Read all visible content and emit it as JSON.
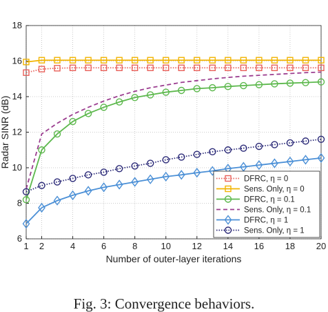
{
  "chart_data": {
    "type": "line",
    "x_label": "Number of outer-layer iterations",
    "y_label": "Radar SINR (dB)",
    "caption": "Fig. 3: Convergence behaviors.",
    "x": [
      1,
      2,
      3,
      4,
      5,
      6,
      7,
      8,
      9,
      10,
      11,
      12,
      13,
      14,
      15,
      16,
      17,
      18,
      19,
      20
    ],
    "xlim": [
      1,
      20
    ],
    "xticks": [
      1,
      2,
      4,
      6,
      8,
      10,
      12,
      14,
      16,
      18,
      20
    ],
    "ylim": [
      6,
      18
    ],
    "yticks": [
      6,
      8,
      10,
      12,
      14,
      16,
      18
    ],
    "grid": true,
    "legend": "lower right",
    "series": [
      {
        "name": "DFRC, η = 0",
        "color": "#e8605a",
        "dash": "dotted",
        "marker": "square",
        "values": [
          15.35,
          15.55,
          15.6,
          15.62,
          15.62,
          15.62,
          15.62,
          15.62,
          15.62,
          15.62,
          15.62,
          15.62,
          15.62,
          15.62,
          15.62,
          15.62,
          15.62,
          15.62,
          15.62,
          15.62
        ]
      },
      {
        "name": "Sens. Only, η = 0",
        "color": "#f2b400",
        "dash": "solid",
        "marker": "square",
        "values": [
          15.95,
          16.05,
          16.05,
          16.05,
          16.05,
          16.05,
          16.05,
          16.05,
          16.05,
          16.05,
          16.05,
          16.05,
          16.05,
          16.05,
          16.05,
          16.05,
          16.05,
          16.05,
          16.05,
          16.05
        ]
      },
      {
        "name": "DFRC, η = 0.1",
        "color": "#5cb84c",
        "dash": "solid",
        "marker": "circle",
        "values": [
          8.2,
          11.0,
          11.9,
          12.6,
          13.05,
          13.4,
          13.7,
          13.95,
          14.1,
          14.25,
          14.35,
          14.45,
          14.5,
          14.57,
          14.62,
          14.67,
          14.72,
          14.76,
          14.79,
          14.83
        ]
      },
      {
        "name": "Sens. Only, η = 0.1",
        "color": "#9b3d8f",
        "dash": "dashed",
        "marker": "none",
        "values": [
          8.8,
          11.9,
          12.5,
          13.0,
          13.4,
          13.75,
          14.05,
          14.3,
          14.5,
          14.65,
          14.8,
          14.9,
          15.0,
          15.08,
          15.15,
          15.2,
          15.25,
          15.3,
          15.35,
          15.38
        ]
      },
      {
        "name": "DFRC, η = 1",
        "color": "#4a8fd6",
        "dash": "solid",
        "marker": "diamond",
        "values": [
          6.85,
          7.75,
          8.15,
          8.45,
          8.7,
          8.9,
          9.05,
          9.2,
          9.35,
          9.5,
          9.6,
          9.72,
          9.82,
          9.95,
          10.05,
          10.15,
          10.25,
          10.35,
          10.45,
          10.55
        ]
      },
      {
        "name": "Sens. Only, η = 1",
        "color": "#2b2a78",
        "dash": "dotted",
        "marker": "circle",
        "values": [
          8.65,
          9.0,
          9.2,
          9.4,
          9.6,
          9.75,
          9.95,
          10.1,
          10.25,
          10.45,
          10.6,
          10.75,
          10.9,
          11.0,
          11.1,
          11.2,
          11.3,
          11.4,
          11.5,
          11.6
        ]
      }
    ]
  }
}
